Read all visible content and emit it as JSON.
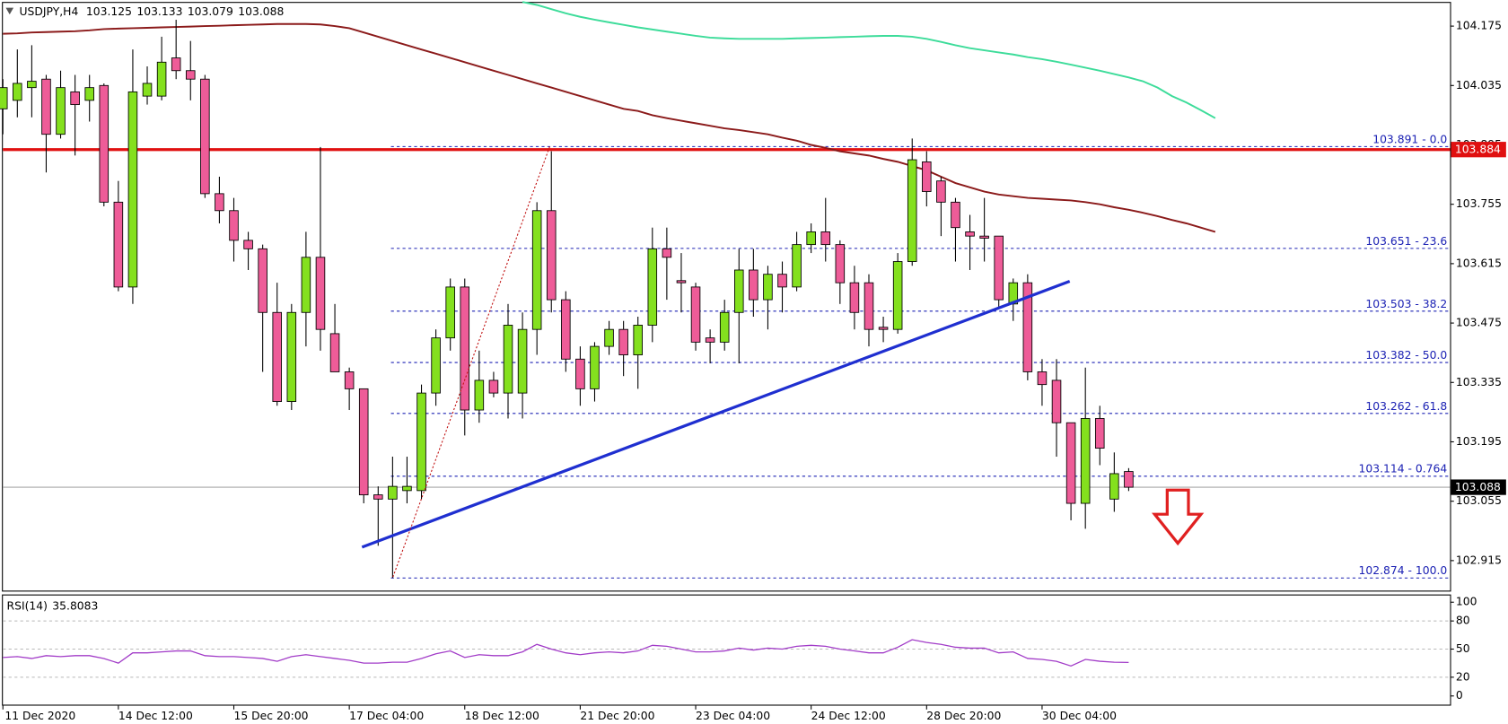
{
  "chart_data": {
    "type": "candlestick",
    "symbol": "USDJPY,H4",
    "header_ohlc": [
      103.125,
      103.133,
      103.079,
      103.088
    ],
    "up_color": "#84e01e",
    "down_color": "#ee5c98",
    "categories": [
      "11 Dec 2020",
      null,
      null,
      null,
      null,
      null,
      null,
      null,
      "14 Dec 12:00",
      null,
      null,
      null,
      null,
      null,
      null,
      null,
      "15 Dec 20:00",
      null,
      null,
      null,
      null,
      null,
      null,
      null,
      "17 Dec 04:00",
      null,
      null,
      null,
      null,
      null,
      null,
      null,
      "18 Dec 12:00",
      null,
      null,
      null,
      null,
      null,
      null,
      null,
      "21 Dec 20:00",
      null,
      null,
      null,
      null,
      null,
      null,
      null,
      "23 Dec 04:00",
      null,
      null,
      null,
      null,
      null,
      null,
      null,
      "24 Dec 12:00",
      null,
      null,
      null,
      null,
      null,
      null,
      null,
      "28 Dec 20:00",
      null,
      null,
      null,
      null,
      null,
      null,
      null,
      "30 Dec 04:00",
      null,
      null,
      null,
      null,
      null,
      null,
      null,
      null,
      null,
      null,
      null,
      null
    ],
    "open": [
      103.98,
      104.0,
      104.03,
      104.05,
      103.92,
      104.02,
      104.0,
      104.035,
      103.76,
      103.56,
      104.01,
      104.01,
      104.1,
      104.07,
      104.05,
      103.78,
      103.74,
      103.67,
      103.65,
      103.5,
      103.29,
      103.5,
      103.63,
      103.45,
      103.36,
      103.32,
      103.07,
      103.06,
      103.08,
      103.08,
      103.31,
      103.44,
      103.56,
      103.27,
      103.34,
      103.31,
      103.31,
      103.46,
      103.74,
      103.53,
      103.39,
      103.32,
      103.42,
      103.46,
      103.4,
      103.47,
      103.65,
      103.575,
      103.56,
      103.44,
      103.43,
      103.5,
      103.6,
      103.53,
      103.59,
      103.56,
      103.66,
      103.69,
      103.66,
      103.57,
      103.57,
      103.465,
      103.46,
      103.62,
      103.855,
      103.81,
      103.76,
      103.69,
      103.68,
      103.68,
      103.52,
      103.57,
      103.36,
      103.34,
      103.24,
      103.05,
      103.25,
      103.06,
      103.125,
      null,
      null,
      null,
      null,
      null,
      null
    ],
    "high": [
      104.05,
      104.12,
      104.13,
      104.06,
      104.07,
      104.06,
      104.06,
      104.04,
      103.81,
      104.12,
      104.08,
      104.15,
      104.19,
      104.14,
      104.06,
      103.82,
      103.77,
      103.69,
      103.66,
      103.57,
      103.52,
      103.69,
      103.89,
      103.52,
      103.37,
      103.32,
      103.09,
      103.16,
      103.16,
      103.33,
      103.46,
      103.58,
      103.58,
      103.41,
      103.36,
      103.52,
      103.5,
      103.76,
      103.88,
      103.55,
      103.42,
      103.43,
      103.48,
      103.48,
      103.49,
      103.7,
      103.7,
      103.64,
      103.57,
      103.46,
      103.53,
      103.65,
      103.65,
      103.61,
      103.62,
      103.69,
      103.71,
      103.77,
      103.67,
      103.61,
      103.59,
      103.49,
      103.64,
      103.91,
      103.88,
      103.82,
      103.77,
      103.73,
      103.77,
      103.68,
      103.58,
      103.59,
      103.39,
      103.39,
      103.24,
      103.37,
      103.28,
      103.17,
      103.133,
      null,
      null,
      null,
      null,
      null,
      null
    ],
    "low": [
      103.92,
      103.96,
      103.96,
      103.83,
      103.91,
      103.87,
      103.95,
      103.75,
      103.55,
      103.52,
      103.99,
      104.0,
      104.05,
      104.0,
      103.77,
      103.71,
      103.62,
      103.6,
      103.36,
      103.28,
      103.27,
      103.42,
      103.41,
      103.36,
      103.27,
      103.05,
      102.95,
      102.874,
      103.05,
      103.06,
      103.28,
      103.41,
      103.21,
      103.24,
      103.3,
      103.25,
      103.25,
      103.4,
      103.5,
      103.36,
      103.28,
      103.29,
      103.4,
      103.35,
      103.32,
      103.43,
      103.53,
      103.5,
      103.41,
      103.38,
      103.41,
      103.38,
      103.49,
      103.46,
      103.5,
      103.55,
      103.64,
      103.62,
      103.52,
      103.46,
      103.42,
      103.43,
      103.45,
      103.61,
      103.75,
      103.68,
      103.62,
      103.6,
      103.62,
      103.51,
      103.48,
      103.34,
      103.28,
      103.16,
      103.01,
      102.99,
      103.14,
      103.03,
      103.079,
      null,
      null,
      null,
      null,
      null,
      null
    ],
    "close": [
      104.03,
      104.04,
      104.045,
      103.92,
      104.03,
      103.99,
      104.03,
      103.76,
      103.56,
      104.02,
      104.04,
      104.09,
      104.07,
      104.05,
      103.78,
      103.74,
      103.67,
      103.65,
      103.5,
      103.29,
      103.5,
      103.63,
      103.46,
      103.36,
      103.32,
      103.07,
      103.06,
      103.09,
      103.09,
      103.31,
      103.44,
      103.56,
      103.27,
      103.34,
      103.31,
      103.47,
      103.46,
      103.74,
      103.53,
      103.39,
      103.32,
      103.42,
      103.46,
      103.4,
      103.47,
      103.65,
      103.63,
      103.57,
      103.43,
      103.43,
      103.5,
      103.6,
      103.53,
      103.59,
      103.56,
      103.66,
      103.69,
      103.66,
      103.57,
      103.5,
      103.46,
      103.46,
      103.62,
      103.86,
      103.785,
      103.76,
      103.7,
      103.68,
      103.675,
      103.53,
      103.57,
      103.36,
      103.33,
      103.24,
      103.05,
      103.25,
      103.18,
      103.12,
      103.088,
      null,
      null,
      null,
      null,
      null,
      null
    ],
    "overlays": [
      {
        "color": "#8b1a1a",
        "values": [
          104.157,
          104.158,
          104.16,
          104.161,
          104.162,
          104.163,
          104.165,
          104.168,
          104.169,
          104.17,
          104.171,
          104.172,
          104.173,
          104.174,
          104.175,
          104.176,
          104.177,
          104.178,
          104.179,
          104.18,
          104.18,
          104.18,
          104.179,
          104.175,
          104.17,
          104.16,
          104.15,
          104.14,
          104.13,
          104.12,
          104.11,
          104.1,
          104.09,
          104.08,
          104.07,
          104.06,
          104.05,
          104.04,
          104.03,
          104.02,
          104.01,
          104.0,
          103.99,
          103.98,
          103.975,
          103.965,
          103.958,
          103.952,
          103.946,
          103.94,
          103.934,
          103.93,
          103.925,
          103.92,
          103.912,
          103.905,
          103.895,
          103.888,
          103.88,
          103.875,
          103.87,
          103.862,
          103.855,
          103.845,
          103.835,
          103.82,
          103.805,
          103.795,
          103.785,
          103.778,
          103.774,
          103.77,
          103.768,
          103.766,
          103.764,
          103.76,
          103.755,
          103.748,
          103.742,
          103.735,
          103.727,
          103.718,
          103.71,
          103.7,
          103.69
        ]
      },
      {
        "color": "#3ddc9a",
        "values": [
          null,
          null,
          null,
          null,
          null,
          null,
          null,
          null,
          null,
          null,
          null,
          null,
          null,
          null,
          null,
          null,
          null,
          null,
          null,
          null,
          null,
          null,
          null,
          null,
          null,
          null,
          null,
          null,
          null,
          null,
          null,
          null,
          null,
          null,
          null,
          null,
          104.232,
          104.225,
          104.215,
          104.205,
          104.197,
          104.19,
          104.184,
          104.178,
          104.172,
          104.167,
          104.162,
          104.157,
          104.152,
          104.148,
          104.146,
          104.145,
          104.145,
          104.145,
          104.145,
          104.146,
          104.147,
          104.148,
          104.149,
          104.15,
          104.151,
          104.152,
          104.152,
          104.15,
          104.145,
          104.138,
          104.13,
          104.123,
          104.118,
          104.113,
          104.108,
          104.102,
          104.097,
          104.091,
          104.084,
          104.077,
          104.07,
          104.062,
          104.054,
          104.045,
          104.03,
          104.01,
          103.995,
          103.977,
          103.958
        ]
      }
    ],
    "ylim": [
      102.842,
      104.232
    ],
    "yticks": [
      102.915,
      103.055,
      103.195,
      103.335,
      103.475,
      103.615,
      103.755,
      103.895,
      104.035,
      104.175
    ],
    "fib_levels": [
      {
        "value": 103.891,
        "label": "103.891 - 0.0"
      },
      {
        "value": 103.651,
        "label": "103.651 - 23.6"
      },
      {
        "value": 103.503,
        "label": "103.503 - 38.2"
      },
      {
        "value": 103.382,
        "label": "103.382 - 50.0"
      },
      {
        "value": 103.262,
        "label": "103.262 - 61.8"
      },
      {
        "value": 103.114,
        "label": "103.114 - 0.764"
      },
      {
        "value": 102.874,
        "label": "102.874 - 100.0"
      }
    ],
    "fib_color": "#1c22b4",
    "resistance": {
      "value": 103.884,
      "color": "#e01010"
    },
    "current_price": 103.088,
    "rsi": {
      "label": "RSI(14)",
      "color": "#a23cc8",
      "values": [
        41,
        42,
        40,
        43,
        42,
        43,
        43,
        40,
        35,
        46,
        46,
        47,
        48,
        48,
        43,
        42,
        42,
        41,
        40,
        37,
        42,
        44,
        42,
        40,
        38,
        35,
        35,
        36,
        36,
        40,
        45,
        48,
        41,
        44,
        43,
        43,
        47,
        55,
        50,
        46,
        44,
        46,
        47,
        46,
        48,
        54,
        53,
        50,
        47,
        47,
        48,
        51,
        49,
        51,
        50,
        53,
        54,
        53,
        50,
        48,
        46,
        46,
        52,
        60,
        57,
        55,
        52,
        51,
        51,
        46,
        47,
        40,
        39,
        37,
        32,
        39,
        37,
        36,
        35.8083,
        null,
        null,
        null,
        null,
        null,
        null
      ],
      "ylim": [
        0,
        100
      ],
      "yticks": [
        0,
        20,
        50,
        80,
        100
      ]
    }
  }
}
